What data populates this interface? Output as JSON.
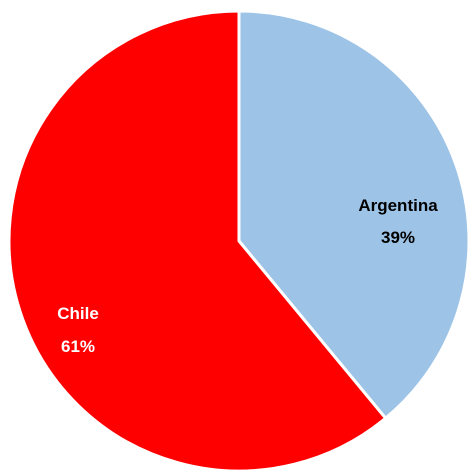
{
  "chart_data": {
    "type": "pie",
    "title": "",
    "categories": [
      "Argentina",
      "Chile"
    ],
    "values": [
      39,
      61
    ],
    "labels": [
      {
        "name": "Argentina",
        "percent": "39%"
      },
      {
        "name": "Chile",
        "percent": "61%"
      }
    ],
    "colors": [
      "#9dc3e6",
      "#ff0000"
    ],
    "label_colors": [
      "#000000",
      "#ffffff"
    ],
    "start": "12 o'clock",
    "direction": "clockwise",
    "legend": "none"
  }
}
